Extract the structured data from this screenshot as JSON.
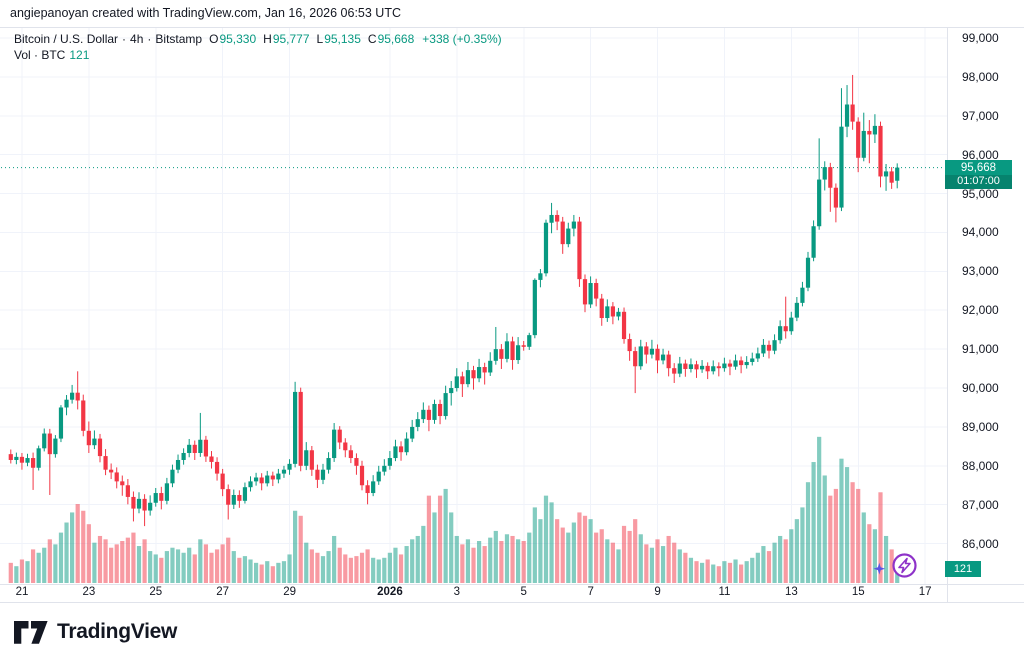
{
  "attribution": "angiepanoyan created with TradingView.com, Jan 16, 2026 06:53 UTC",
  "legend": {
    "symbol": "Bitcoin / U.S. Dollar",
    "separator": "·",
    "interval": "4h",
    "exchange": "Bitstamp",
    "open_label": "O",
    "open": "95,330",
    "high_label": "H",
    "high": "95,777",
    "low_label": "L",
    "low": "95,135",
    "close_label": "C",
    "close": "95,668",
    "change": "+338 (+0.35%)",
    "volume_label": "Vol · BTC",
    "volume_value": "121"
  },
  "price_axis": {
    "labels": [
      "99,000",
      "98,000",
      "97,000",
      "96,000",
      "95,000",
      "94,000",
      "93,000",
      "92,000",
      "91,000",
      "90,000",
      "89,000",
      "88,000",
      "87,000",
      "86,000"
    ],
    "price_tag": {
      "price": "95,668",
      "countdown": "01:07:00"
    },
    "volume_tag": "121"
  },
  "time_axis": {
    "labels": [
      {
        "text": "21",
        "day": 0,
        "bold": false
      },
      {
        "text": "23",
        "day": 2,
        "bold": false
      },
      {
        "text": "25",
        "day": 4,
        "bold": false
      },
      {
        "text": "27",
        "day": 6,
        "bold": false
      },
      {
        "text": "29",
        "day": 8,
        "bold": false
      },
      {
        "text": "2026",
        "day": 11,
        "bold": true
      },
      {
        "text": "3",
        "day": 13,
        "bold": false
      },
      {
        "text": "5",
        "day": 15,
        "bold": false
      },
      {
        "text": "7",
        "day": 17,
        "bold": false
      },
      {
        "text": "9",
        "day": 19,
        "bold": false
      },
      {
        "text": "11",
        "day": 21,
        "bold": false
      },
      {
        "text": "13",
        "day": 23,
        "bold": false
      },
      {
        "text": "15",
        "day": 25,
        "bold": false
      },
      {
        "text": "17",
        "day": 27,
        "bold": false
      }
    ]
  },
  "logo": {
    "brand": "TradingView"
  },
  "colors": {
    "up": "#089981",
    "down": "#f23645",
    "vol_up": "rgba(8,153,129,0.5)",
    "vol_down": "rgba(242,54,69,0.5)",
    "grid": "#f0f3fa",
    "border": "#e0e3eb",
    "tag_bg": "#089981",
    "text": "#131722",
    "icon_purple": "#8e32c9",
    "icon_star": "#5b55e3"
  },
  "chart_data": {
    "type": "candlestick+volume",
    "title": "Bitcoin / U.S. Dollar · 4h · Bitstamp",
    "interval": "4h",
    "volume_unit": "BTC",
    "last_price": 95668,
    "last_volume": 121,
    "price_gridlines": [
      86000,
      87000,
      88000,
      89000,
      90000,
      91000,
      92000,
      93000,
      94000,
      95000,
      96000,
      97000,
      98000,
      99000
    ],
    "time_labels": [
      "21",
      "23",
      "25",
      "27",
      "29",
      "2026",
      "3",
      "5",
      "7",
      "9",
      "11",
      "13",
      "15",
      "17"
    ],
    "candles_per_day": 6,
    "first_day_label_candle_index": 2,
    "candles": [
      [
        88300,
        88420,
        88060,
        88150,
        120
      ],
      [
        88150,
        88340,
        88040,
        88230,
        100
      ],
      [
        88230,
        88330,
        87900,
        88080,
        140
      ],
      [
        88080,
        88310,
        87990,
        88200,
        130
      ],
      [
        88200,
        88340,
        87380,
        87950,
        200
      ],
      [
        87950,
        88520,
        87880,
        88450,
        180
      ],
      [
        88450,
        88960,
        88370,
        88830,
        210
      ],
      [
        88830,
        88950,
        87250,
        88300,
        260
      ],
      [
        88300,
        88790,
        88210,
        88700,
        230
      ],
      [
        88700,
        89560,
        88610,
        89500,
        300
      ],
      [
        89500,
        89820,
        89300,
        89700,
        360
      ],
      [
        89700,
        90080,
        89600,
        89880,
        420
      ],
      [
        89880,
        90430,
        89450,
        89680,
        470
      ],
      [
        89680,
        89830,
        88760,
        88900,
        430
      ],
      [
        88900,
        89140,
        88330,
        88530,
        350
      ],
      [
        88530,
        88910,
        88430,
        88700,
        240
      ],
      [
        88700,
        88820,
        88090,
        88250,
        280
      ],
      [
        88250,
        88430,
        87760,
        87900,
        260
      ],
      [
        87900,
        88060,
        87660,
        87830,
        210
      ],
      [
        87830,
        87960,
        87420,
        87600,
        230
      ],
      [
        87600,
        87750,
        87230,
        87500,
        250
      ],
      [
        87500,
        87660,
        87010,
        87200,
        270
      ],
      [
        87200,
        87340,
        86570,
        86900,
        300
      ],
      [
        86900,
        87320,
        86780,
        87150,
        220
      ],
      [
        87150,
        87270,
        86450,
        86850,
        260
      ],
      [
        86850,
        87240,
        86720,
        87050,
        190
      ],
      [
        87050,
        87430,
        86950,
        87300,
        170
      ],
      [
        87300,
        87460,
        86880,
        87100,
        150
      ],
      [
        87100,
        87690,
        87010,
        87550,
        190
      ],
      [
        87550,
        88030,
        87450,
        87900,
        210
      ],
      [
        87900,
        88290,
        87810,
        88150,
        200
      ],
      [
        88150,
        88450,
        88030,
        88330,
        180
      ],
      [
        88330,
        88690,
        88220,
        88540,
        210
      ],
      [
        88540,
        88650,
        88150,
        88330,
        170
      ],
      [
        88330,
        89360,
        88230,
        88670,
        260
      ],
      [
        88670,
        88770,
        88100,
        88240,
        230
      ],
      [
        88240,
        88380,
        87930,
        88100,
        180
      ],
      [
        88100,
        88220,
        87620,
        87800,
        200
      ],
      [
        87800,
        87920,
        87220,
        87400,
        230
      ],
      [
        87400,
        87520,
        86620,
        87000,
        270
      ],
      [
        87000,
        87390,
        86890,
        87250,
        190
      ],
      [
        87250,
        87370,
        86920,
        87100,
        150
      ],
      [
        87100,
        87570,
        87030,
        87450,
        160
      ],
      [
        87450,
        87730,
        87340,
        87600,
        140
      ],
      [
        87600,
        87820,
        87490,
        87700,
        120
      ],
      [
        87700,
        87810,
        87370,
        87550,
        110
      ],
      [
        87550,
        87870,
        87470,
        87750,
        130
      ],
      [
        87750,
        87850,
        87480,
        87650,
        100
      ],
      [
        87650,
        87920,
        87550,
        87800,
        120
      ],
      [
        87800,
        88000,
        87690,
        87900,
        130
      ],
      [
        87900,
        88170,
        87770,
        88050,
        170
      ],
      [
        88050,
        90160,
        87960,
        89900,
        430
      ],
      [
        89900,
        90010,
        87860,
        88000,
        400
      ],
      [
        88000,
        88610,
        87890,
        88400,
        240
      ],
      [
        88400,
        88510,
        87740,
        87900,
        200
      ],
      [
        87900,
        88030,
        87430,
        87640,
        180
      ],
      [
        87640,
        88050,
        87530,
        87900,
        160
      ],
      [
        87900,
        88350,
        87800,
        88200,
        190
      ],
      [
        88200,
        89100,
        88100,
        88930,
        280
      ],
      [
        88930,
        89020,
        88430,
        88600,
        210
      ],
      [
        88600,
        88710,
        88220,
        88400,
        170
      ],
      [
        88400,
        88530,
        88070,
        88200,
        150
      ],
      [
        88200,
        88320,
        87770,
        88000,
        160
      ],
      [
        88000,
        88130,
        87370,
        87500,
        180
      ],
      [
        87500,
        87630,
        87010,
        87300,
        200
      ],
      [
        87300,
        87760,
        87220,
        87600,
        150
      ],
      [
        87600,
        88000,
        87510,
        87850,
        140
      ],
      [
        87850,
        88170,
        87750,
        88000,
        150
      ],
      [
        88000,
        88380,
        87900,
        88200,
        180
      ],
      [
        88200,
        88670,
        88120,
        88500,
        210
      ],
      [
        88500,
        88630,
        88130,
        88350,
        170
      ],
      [
        88350,
        88860,
        88270,
        88700,
        220
      ],
      [
        88700,
        89180,
        88610,
        89000,
        260
      ],
      [
        89000,
        89380,
        88890,
        89200,
        280
      ],
      [
        89200,
        89630,
        89100,
        89440,
        340
      ],
      [
        89440,
        89550,
        88890,
        89180,
        520
      ],
      [
        89180,
        89700,
        89080,
        89590,
        420
      ],
      [
        89590,
        89700,
        89070,
        89280,
        520
      ],
      [
        89280,
        90060,
        89190,
        89870,
        560
      ],
      [
        89870,
        90180,
        89550,
        90000,
        420
      ],
      [
        90000,
        90510,
        89910,
        90300,
        280
      ],
      [
        90300,
        90420,
        89770,
        90100,
        230
      ],
      [
        90100,
        90670,
        90020,
        90460,
        260
      ],
      [
        90460,
        90570,
        89960,
        90250,
        210
      ],
      [
        90250,
        90750,
        90150,
        90540,
        250
      ],
      [
        90540,
        90650,
        90090,
        90400,
        220
      ],
      [
        90400,
        90920,
        90310,
        90700,
        270
      ],
      [
        90700,
        91570,
        90600,
        91000,
        310
      ],
      [
        91000,
        91130,
        90490,
        90750,
        250
      ],
      [
        90750,
        91410,
        90660,
        91200,
        290
      ],
      [
        91200,
        91320,
        90470,
        90720,
        280
      ],
      [
        90720,
        91310,
        90620,
        91100,
        260
      ],
      [
        91100,
        91210,
        90960,
        91060,
        250
      ],
      [
        91060,
        91420,
        90980,
        91360,
        300
      ],
      [
        91360,
        92820,
        91280,
        92780,
        450
      ],
      [
        92780,
        93060,
        92590,
        92950,
        380
      ],
      [
        92950,
        94330,
        92870,
        94250,
        520
      ],
      [
        94250,
        94760,
        93980,
        94450,
        480
      ],
      [
        94450,
        94570,
        94060,
        94280,
        380
      ],
      [
        94280,
        94400,
        93450,
        93700,
        330
      ],
      [
        93700,
        94250,
        93620,
        94100,
        300
      ],
      [
        94100,
        94450,
        93900,
        94280,
        360
      ],
      [
        94280,
        94400,
        92600,
        92800,
        420
      ],
      [
        92800,
        92920,
        91950,
        92150,
        400
      ],
      [
        92150,
        92870,
        92060,
        92700,
        380
      ],
      [
        92700,
        92810,
        92100,
        92300,
        300
      ],
      [
        92300,
        92420,
        91600,
        91800,
        320
      ],
      [
        91800,
        92280,
        91700,
        92100,
        260
      ],
      [
        92100,
        92210,
        91640,
        91840,
        240
      ],
      [
        91840,
        92060,
        91740,
        91960,
        200
      ],
      [
        91960,
        92070,
        91140,
        91260,
        340
      ],
      [
        91260,
        91400,
        90700,
        90950,
        310
      ],
      [
        90950,
        91060,
        89870,
        90560,
        380
      ],
      [
        90560,
        91240,
        90470,
        91070,
        290
      ],
      [
        91070,
        91180,
        90630,
        90860,
        230
      ],
      [
        90860,
        91240,
        90760,
        91010,
        210
      ],
      [
        91010,
        91120,
        90380,
        90710,
        260
      ],
      [
        90710,
        91010,
        90610,
        90860,
        220
      ],
      [
        90860,
        90960,
        90300,
        90510,
        280
      ],
      [
        90510,
        90640,
        90130,
        90370,
        240
      ],
      [
        90370,
        90800,
        90280,
        90630,
        200
      ],
      [
        90630,
        90730,
        90290,
        90490,
        180
      ],
      [
        90490,
        90760,
        90400,
        90610,
        150
      ],
      [
        90610,
        90700,
        90260,
        90480,
        130
      ],
      [
        90480,
        90720,
        90390,
        90570,
        120
      ],
      [
        90570,
        90660,
        90230,
        90430,
        140
      ],
      [
        90430,
        90710,
        90350,
        90560,
        110
      ],
      [
        90560,
        90660,
        90300,
        90510,
        100
      ],
      [
        90510,
        90780,
        90420,
        90630,
        130
      ],
      [
        90630,
        90730,
        90330,
        90550,
        120
      ],
      [
        90550,
        90860,
        90470,
        90710,
        140
      ],
      [
        90710,
        90810,
        90380,
        90590,
        110
      ],
      [
        90590,
        90820,
        90500,
        90670,
        130
      ],
      [
        90670,
        90910,
        90580,
        90760,
        150
      ],
      [
        90760,
        91040,
        90670,
        90890,
        180
      ],
      [
        90890,
        91260,
        90800,
        91110,
        220
      ],
      [
        91110,
        91220,
        90760,
        90960,
        190
      ],
      [
        90960,
        91380,
        90870,
        91230,
        240
      ],
      [
        91230,
        91740,
        91140,
        91590,
        280
      ],
      [
        91590,
        92350,
        91270,
        91460,
        260
      ],
      [
        91460,
        91960,
        91370,
        91810,
        320
      ],
      [
        91810,
        92340,
        91720,
        92190,
        380
      ],
      [
        92190,
        92730,
        92100,
        92580,
        450
      ],
      [
        92580,
        93500,
        92490,
        93350,
        600
      ],
      [
        93350,
        94310,
        93260,
        94160,
        720
      ],
      [
        94160,
        96420,
        94070,
        95360,
        870
      ],
      [
        95360,
        95830,
        95080,
        95680,
        640
      ],
      [
        95680,
        95790,
        94530,
        95150,
        520
      ],
      [
        95150,
        95260,
        94260,
        94640,
        560
      ],
      [
        94640,
        97710,
        94550,
        96720,
        740
      ],
      [
        96720,
        97790,
        96450,
        97290,
        690
      ],
      [
        97290,
        98050,
        96640,
        96850,
        600
      ],
      [
        96850,
        96960,
        95550,
        95920,
        560
      ],
      [
        95920,
        97080,
        95830,
        96610,
        420
      ],
      [
        96610,
        96890,
        95780,
        96520,
        350
      ],
      [
        96520,
        97040,
        96300,
        96740,
        320
      ],
      [
        96740,
        96850,
        95160,
        95440,
        540
      ],
      [
        95440,
        95760,
        95070,
        95570,
        280
      ],
      [
        95570,
        95680,
        95120,
        95280,
        200
      ],
      [
        95330,
        95777,
        95135,
        95668,
        121
      ]
    ]
  }
}
